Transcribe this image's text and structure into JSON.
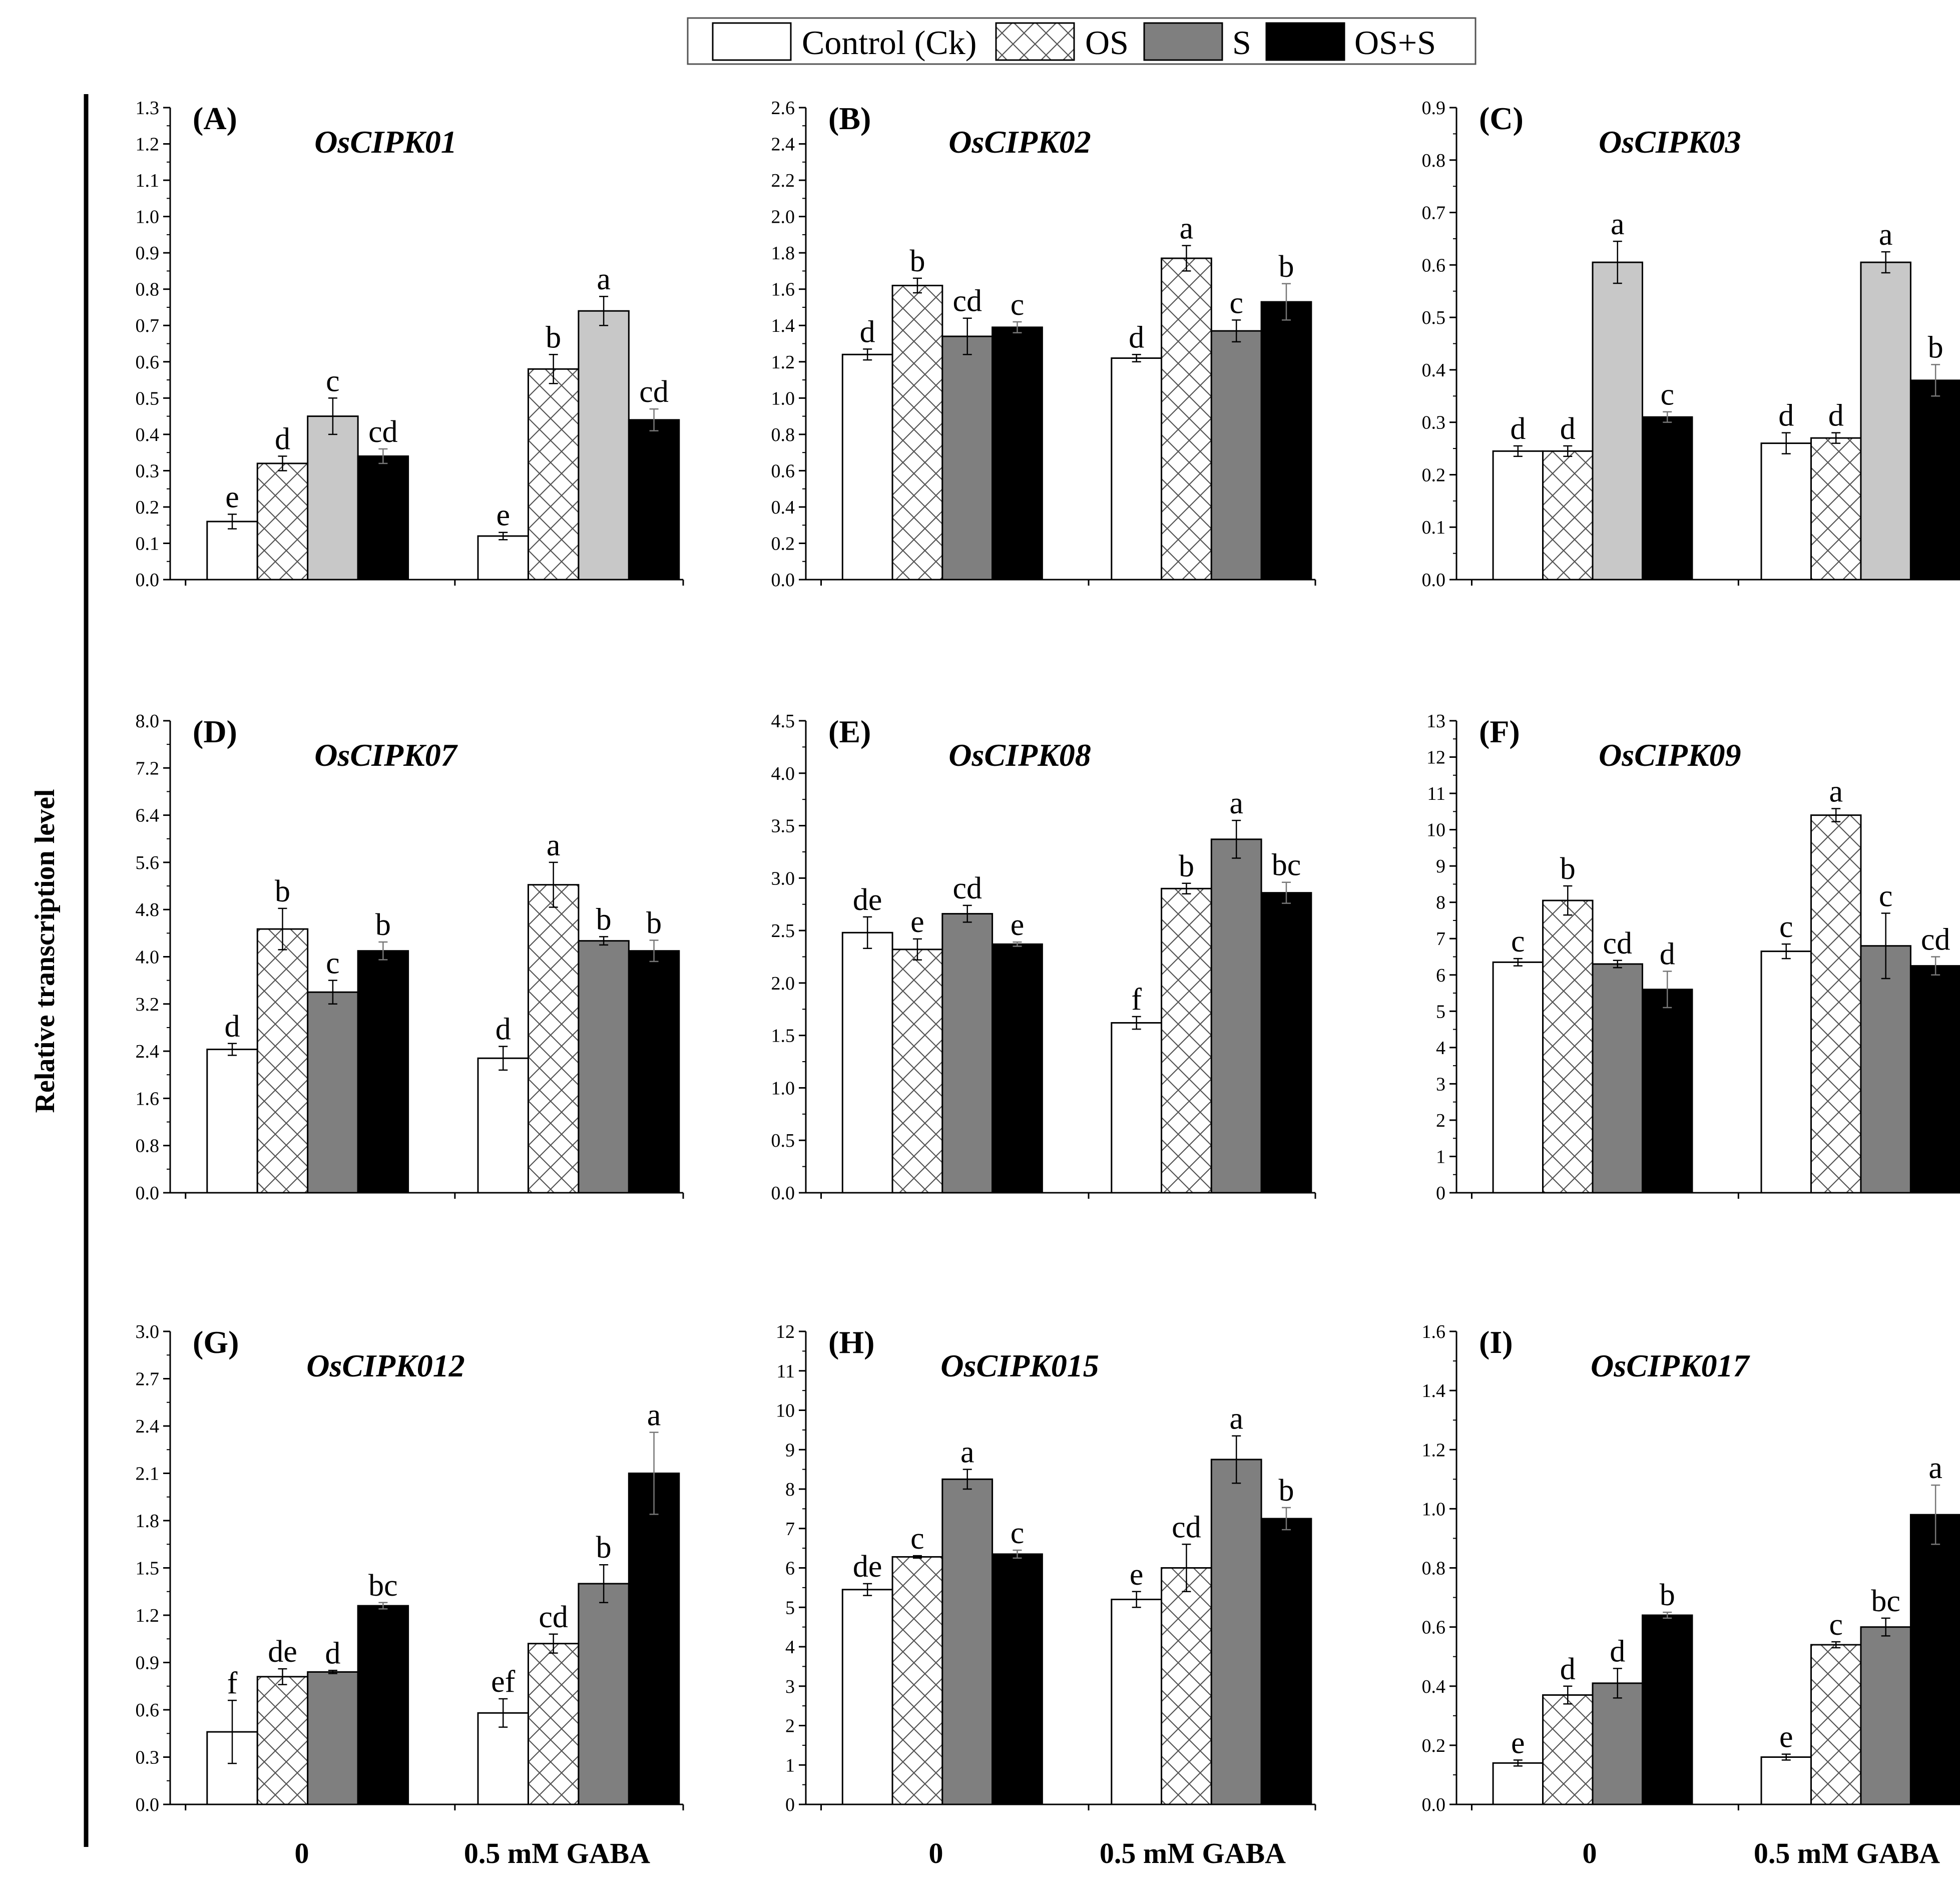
{
  "figure": {
    "ylabel": "Relative transcription level",
    "group_labels": [
      "0",
      "0.5 mM GABA"
    ]
  },
  "legend": [
    {
      "key": "ck",
      "label": "Control (Ck)"
    },
    {
      "key": "os",
      "label": "OS"
    },
    {
      "key": "s",
      "label": "S"
    },
    {
      "key": "oss",
      "label": "OS+S"
    }
  ],
  "chart_data": [
    {
      "type": "bar",
      "panel": "(A)",
      "title": "OsCIPK01",
      "categories": [
        "0",
        "0.5 mM GABA"
      ],
      "ylim": [
        0,
        1.3
      ],
      "yticks": [
        "0.0",
        "0.1",
        "0.2",
        "0.3",
        "0.4",
        "0.5",
        "0.6",
        "0.7",
        "0.8",
        "0.9",
        "1.0",
        "1.1",
        "1.2",
        "1.3"
      ],
      "colors": {
        "s": "#c8c8c8"
      },
      "series": [
        {
          "name": "Control (Ck)",
          "values": [
            0.16,
            0.12
          ],
          "errors": [
            0.02,
            0.01
          ],
          "letters": [
            "e",
            "e"
          ]
        },
        {
          "name": "OS",
          "values": [
            0.32,
            0.58
          ],
          "errors": [
            0.02,
            0.04
          ],
          "letters": [
            "d",
            "b"
          ]
        },
        {
          "name": "S",
          "values": [
            0.45,
            0.74
          ],
          "errors": [
            0.05,
            0.04
          ],
          "letters": [
            "c",
            "a"
          ]
        },
        {
          "name": "OS+S",
          "values": [
            0.34,
            0.44
          ],
          "errors": [
            0.02,
            0.03
          ],
          "letters": [
            "cd",
            "cd"
          ]
        }
      ]
    },
    {
      "type": "bar",
      "panel": "(B)",
      "title": "OsCIPK02",
      "categories": [
        "0",
        "0.5 mM GABA"
      ],
      "ylim": [
        0,
        2.6
      ],
      "yticks": [
        "0.0",
        "0.2",
        "0.4",
        "0.6",
        "0.8",
        "1.0",
        "1.2",
        "1.4",
        "1.6",
        "1.8",
        "2.0",
        "2.2",
        "2.4",
        "2.6"
      ],
      "colors": {
        "s": "#7f7f7f"
      },
      "series": [
        {
          "name": "Control (Ck)",
          "values": [
            1.24,
            1.22
          ],
          "errors": [
            0.03,
            0.02
          ],
          "letters": [
            "d",
            "d"
          ]
        },
        {
          "name": "OS",
          "values": [
            1.62,
            1.77
          ],
          "errors": [
            0.04,
            0.07
          ],
          "letters": [
            "b",
            "a"
          ]
        },
        {
          "name": "S",
          "values": [
            1.34,
            1.37
          ],
          "errors": [
            0.1,
            0.06
          ],
          "letters": [
            "cd",
            "c"
          ]
        },
        {
          "name": "OS+S",
          "values": [
            1.39,
            1.53
          ],
          "errors": [
            0.03,
            0.1
          ],
          "letters": [
            "c",
            "b"
          ]
        }
      ]
    },
    {
      "type": "bar",
      "panel": "(C)",
      "title": "OsCIPK03",
      "categories": [
        "0",
        "0.5 mM GABA"
      ],
      "ylim": [
        0,
        0.9
      ],
      "yticks": [
        "0.0",
        "0.1",
        "0.2",
        "0.3",
        "0.4",
        "0.5",
        "0.6",
        "0.7",
        "0.8",
        "0.9"
      ],
      "colors": {
        "s": "#c8c8c8"
      },
      "series": [
        {
          "name": "Control (Ck)",
          "values": [
            0.245,
            0.26
          ],
          "errors": [
            0.01,
            0.02
          ],
          "letters": [
            "d",
            "d"
          ]
        },
        {
          "name": "OS",
          "values": [
            0.245,
            0.27
          ],
          "errors": [
            0.01,
            0.01
          ],
          "letters": [
            "d",
            "d"
          ]
        },
        {
          "name": "S",
          "values": [
            0.605,
            0.605
          ],
          "errors": [
            0.04,
            0.02
          ],
          "letters": [
            "a",
            "a"
          ]
        },
        {
          "name": "OS+S",
          "values": [
            0.31,
            0.38
          ],
          "errors": [
            0.01,
            0.03
          ],
          "letters": [
            "c",
            "b"
          ]
        }
      ]
    },
    {
      "type": "bar",
      "panel": "(D)",
      "title": "OsCIPK07",
      "categories": [
        "0",
        "0.5 mM GABA"
      ],
      "ylim": [
        0,
        8.0
      ],
      "yticks": [
        "0.0",
        "0.8",
        "1.6",
        "2.4",
        "3.2",
        "4.0",
        "4.8",
        "5.6",
        "6.4",
        "7.2",
        "8.0"
      ],
      "colors": {
        "s": "#7f7f7f"
      },
      "series": [
        {
          "name": "Control (Ck)",
          "values": [
            2.43,
            2.28
          ],
          "errors": [
            0.1,
            0.2
          ],
          "letters": [
            "d",
            "d"
          ]
        },
        {
          "name": "OS",
          "values": [
            4.47,
            5.22
          ],
          "errors": [
            0.35,
            0.38
          ],
          "letters": [
            "b",
            "a"
          ]
        },
        {
          "name": "S",
          "values": [
            3.4,
            4.27
          ],
          "errors": [
            0.2,
            0.07
          ],
          "letters": [
            "c",
            "b"
          ]
        },
        {
          "name": "OS+S",
          "values": [
            4.1,
            4.1
          ],
          "errors": [
            0.15,
            0.18
          ],
          "letters": [
            "b",
            "b"
          ]
        }
      ]
    },
    {
      "type": "bar",
      "panel": "(E)",
      "title": "OsCIPK08",
      "categories": [
        "0",
        "0.5 mM GABA"
      ],
      "ylim": [
        0,
        4.5
      ],
      "yticks": [
        "0.0",
        "0.5",
        "1.0",
        "1.5",
        "2.0",
        "2.5",
        "3.0",
        "3.5",
        "4.0",
        "4.5"
      ],
      "colors": {
        "s": "#7f7f7f"
      },
      "series": [
        {
          "name": "Control (Ck)",
          "values": [
            2.48,
            1.62
          ],
          "errors": [
            0.15,
            0.06
          ],
          "letters": [
            "de",
            "f"
          ]
        },
        {
          "name": "OS",
          "values": [
            2.32,
            2.9
          ],
          "errors": [
            0.1,
            0.05
          ],
          "letters": [
            "e",
            "b"
          ]
        },
        {
          "name": "S",
          "values": [
            2.66,
            3.37
          ],
          "errors": [
            0.08,
            0.18
          ],
          "letters": [
            "cd",
            "a"
          ]
        },
        {
          "name": "OS+S",
          "values": [
            2.37,
            2.86
          ],
          "errors": [
            0.02,
            0.1
          ],
          "letters": [
            "e",
            "bc"
          ]
        }
      ]
    },
    {
      "type": "bar",
      "panel": "(F)",
      "title": "OsCIPK09",
      "categories": [
        "0",
        "0.5 mM GABA"
      ],
      "ylim": [
        0,
        13
      ],
      "yticks": [
        "0",
        "1",
        "2",
        "3",
        "4",
        "5",
        "6",
        "7",
        "8",
        "9",
        "10",
        "11",
        "12",
        "13"
      ],
      "colors": {
        "s": "#7f7f7f"
      },
      "series": [
        {
          "name": "Control (Ck)",
          "values": [
            6.35,
            6.65
          ],
          "errors": [
            0.1,
            0.2
          ],
          "letters": [
            "c",
            "c"
          ]
        },
        {
          "name": "OS",
          "values": [
            8.05,
            10.4
          ],
          "errors": [
            0.4,
            0.18
          ],
          "letters": [
            "b",
            "a"
          ]
        },
        {
          "name": "S",
          "values": [
            6.3,
            6.8
          ],
          "errors": [
            0.1,
            0.9
          ],
          "letters": [
            "cd",
            "c"
          ]
        },
        {
          "name": "OS+S",
          "values": [
            5.6,
            6.25
          ],
          "errors": [
            0.5,
            0.25
          ],
          "letters": [
            "d",
            "cd"
          ]
        }
      ]
    },
    {
      "type": "bar",
      "panel": "(G)",
      "title": "OsCIPK012",
      "categories": [
        "0",
        "0.5 mM GABA"
      ],
      "ylim": [
        0,
        3.0
      ],
      "yticks": [
        "0.0",
        "0.3",
        "0.6",
        "0.9",
        "1.2",
        "1.5",
        "1.8",
        "2.1",
        "2.4",
        "2.7",
        "3.0"
      ],
      "colors": {
        "s": "#7f7f7f"
      },
      "series": [
        {
          "name": "Control (Ck)",
          "values": [
            0.46,
            0.58
          ],
          "errors": [
            0.2,
            0.09
          ],
          "letters": [
            "f",
            "ef"
          ]
        },
        {
          "name": "OS",
          "values": [
            0.81,
            1.02
          ],
          "errors": [
            0.05,
            0.06
          ],
          "letters": [
            "de",
            "cd"
          ]
        },
        {
          "name": "S",
          "values": [
            0.84,
            1.4
          ],
          "errors": [
            0.01,
            0.12
          ],
          "letters": [
            "d",
            "b"
          ]
        },
        {
          "name": "OS+S",
          "values": [
            1.26,
            2.1
          ],
          "errors": [
            0.02,
            0.26
          ],
          "letters": [
            "bc",
            "a"
          ]
        }
      ]
    },
    {
      "type": "bar",
      "panel": "(H)",
      "title": "OsCIPK015",
      "categories": [
        "0",
        "0.5 mM GABA"
      ],
      "ylim": [
        0,
        12
      ],
      "yticks": [
        "0",
        "1",
        "2",
        "3",
        "4",
        "5",
        "6",
        "7",
        "8",
        "9",
        "10",
        "11",
        "12"
      ],
      "colors": {
        "s": "#7f7f7f"
      },
      "series": [
        {
          "name": "Control (Ck)",
          "values": [
            5.45,
            5.2
          ],
          "errors": [
            0.15,
            0.2
          ],
          "letters": [
            "de",
            "e"
          ]
        },
        {
          "name": "OS",
          "values": [
            6.28,
            6.0
          ],
          "errors": [
            0.03,
            0.6
          ],
          "letters": [
            "c",
            "cd"
          ]
        },
        {
          "name": "S",
          "values": [
            8.25,
            8.75
          ],
          "errors": [
            0.25,
            0.6
          ],
          "letters": [
            "a",
            "a"
          ]
        },
        {
          "name": "OS+S",
          "values": [
            6.35,
            7.25
          ],
          "errors": [
            0.1,
            0.28
          ],
          "letters": [
            "c",
            "b"
          ]
        }
      ]
    },
    {
      "type": "bar",
      "panel": "(I)",
      "title": "OsCIPK017",
      "categories": [
        "0",
        "0.5 mM GABA"
      ],
      "ylim": [
        0,
        1.6
      ],
      "yticks": [
        "0.0",
        "0.2",
        "0.4",
        "0.6",
        "0.8",
        "1.0",
        "1.2",
        "1.4",
        "1.6"
      ],
      "colors": {
        "s": "#7f7f7f"
      },
      "series": [
        {
          "name": "Control (Ck)",
          "values": [
            0.14,
            0.16
          ],
          "errors": [
            0.01,
            0.01
          ],
          "letters": [
            "e",
            "e"
          ]
        },
        {
          "name": "OS",
          "values": [
            0.37,
            0.54
          ],
          "errors": [
            0.03,
            0.01
          ],
          "letters": [
            "d",
            "c"
          ]
        },
        {
          "name": "S",
          "values": [
            0.41,
            0.6
          ],
          "errors": [
            0.05,
            0.03
          ],
          "letters": [
            "d",
            "bc"
          ]
        },
        {
          "name": "OS+S",
          "values": [
            0.64,
            0.98
          ],
          "errors": [
            0.01,
            0.1
          ],
          "letters": [
            "b",
            "a"
          ]
        }
      ]
    }
  ]
}
